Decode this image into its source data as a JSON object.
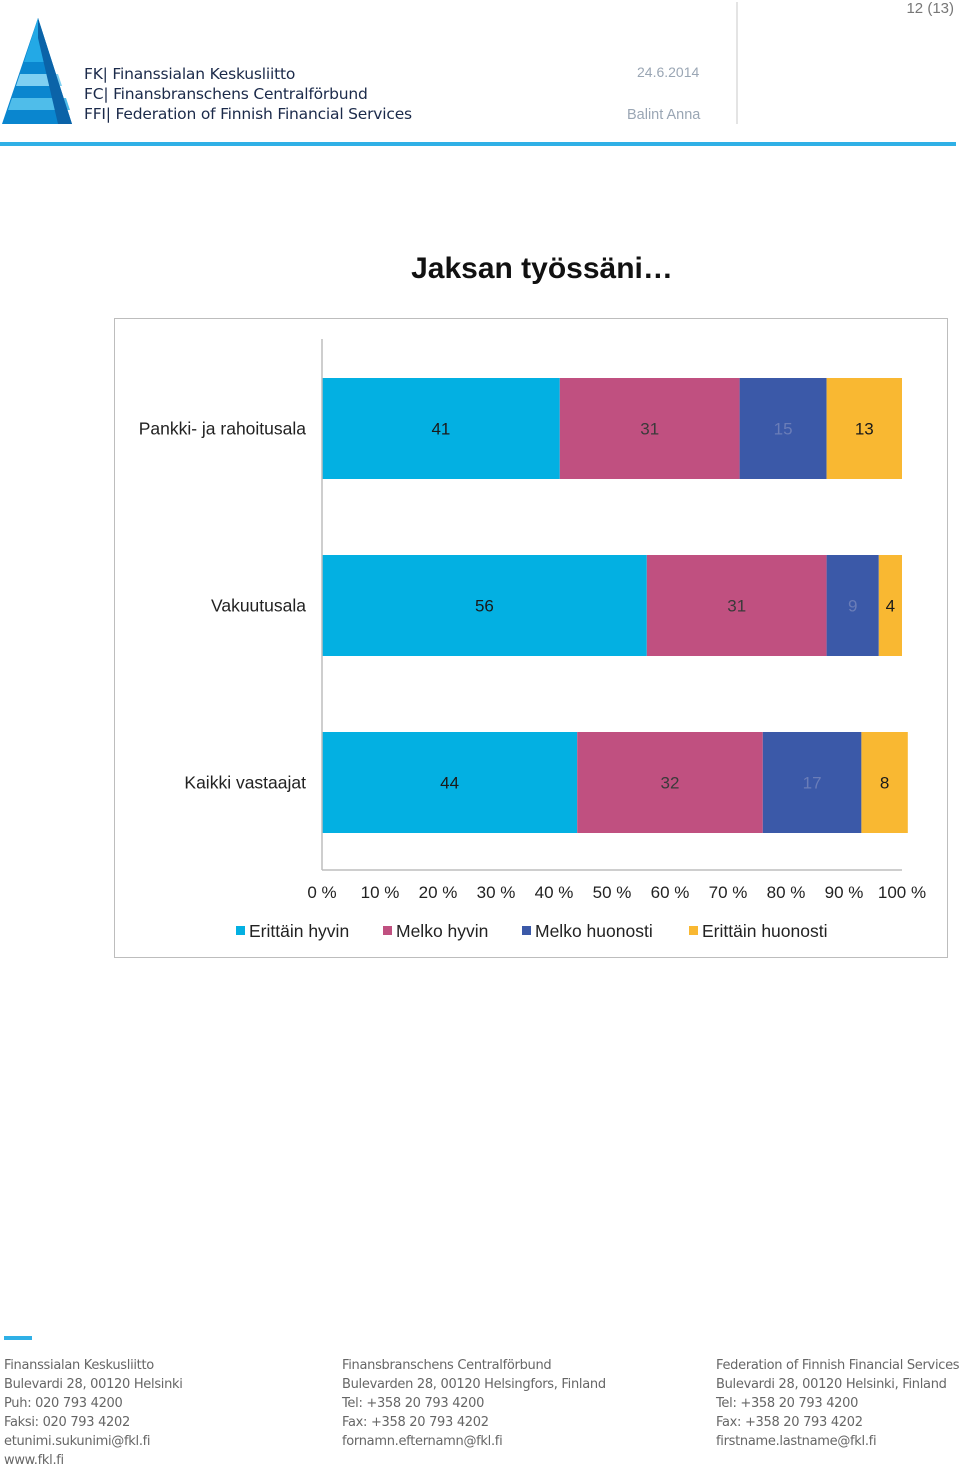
{
  "header": {
    "page_number": "12 (13)",
    "org_lines": [
      "FK| Finanssialan Keskusliitto",
      "FC| Finansbranschens Centralförbund",
      "FFI| Federation of Finnish Financial Services"
    ],
    "date": "24.6.2014",
    "author": "Balint Anna"
  },
  "title": "Jaksan työssäni…",
  "colors": {
    "erittain_hyvin": "#03b0e2",
    "melko_hyvin": "#c05080",
    "melko_huonosti": "#3b59a8",
    "erittain_huonosti": "#f9b832",
    "accent": "#2fb0e6"
  },
  "chart_data": {
    "type": "bar",
    "orientation": "horizontal",
    "stacked": true,
    "categories": [
      "Pankki- ja rahoitusala",
      "Vakuutusala",
      "Kaikki vastaajat"
    ],
    "series": [
      {
        "name": "Erittäin hyvin",
        "values": [
          41,
          56,
          44
        ],
        "color": "#03b0e2"
      },
      {
        "name": "Melko hyvin",
        "values": [
          31,
          31,
          32
        ],
        "color": "#c05080"
      },
      {
        "name": "Melko huonosti",
        "values": [
          15,
          9,
          17
        ],
        "color": "#3b59a8"
      },
      {
        "name": "Erittäin huonosti",
        "values": [
          13,
          4,
          8
        ],
        "color": "#f9b832"
      }
    ],
    "xlim": [
      0,
      100
    ],
    "x_ticks": [
      "0 %",
      "10 %",
      "20 %",
      "30 %",
      "40 %",
      "50 %",
      "60 %",
      "70 %",
      "80 %",
      "90 %",
      "100 %"
    ],
    "legend_position": "bottom",
    "grid": false
  },
  "footer": {
    "columns": [
      [
        "Finanssialan Keskusliitto",
        "Bulevardi 28, 00120 Helsinki",
        "Puh: 020 793 4200",
        "Faksi: 020 793 4202",
        "etunimi.sukunimi@fkl.fi",
        "www.fkl.fi"
      ],
      [
        "Finansbranschens Centralförbund",
        "Bulevarden 28, 00120 Helsingfors, Finland",
        "Tel: +358 20 793 4200",
        "Fax: +358 20 793 4202",
        "fornamn.efternamn@fkl.fi"
      ],
      [
        "Federation of Finnish Financial Services",
        "Bulevardi 28, 00120 Helsinki, Finland",
        "Tel: +358 20 793 4200",
        "Fax: +358 20 793 4202",
        "firstname.lastname@fkl.fi"
      ]
    ]
  }
}
